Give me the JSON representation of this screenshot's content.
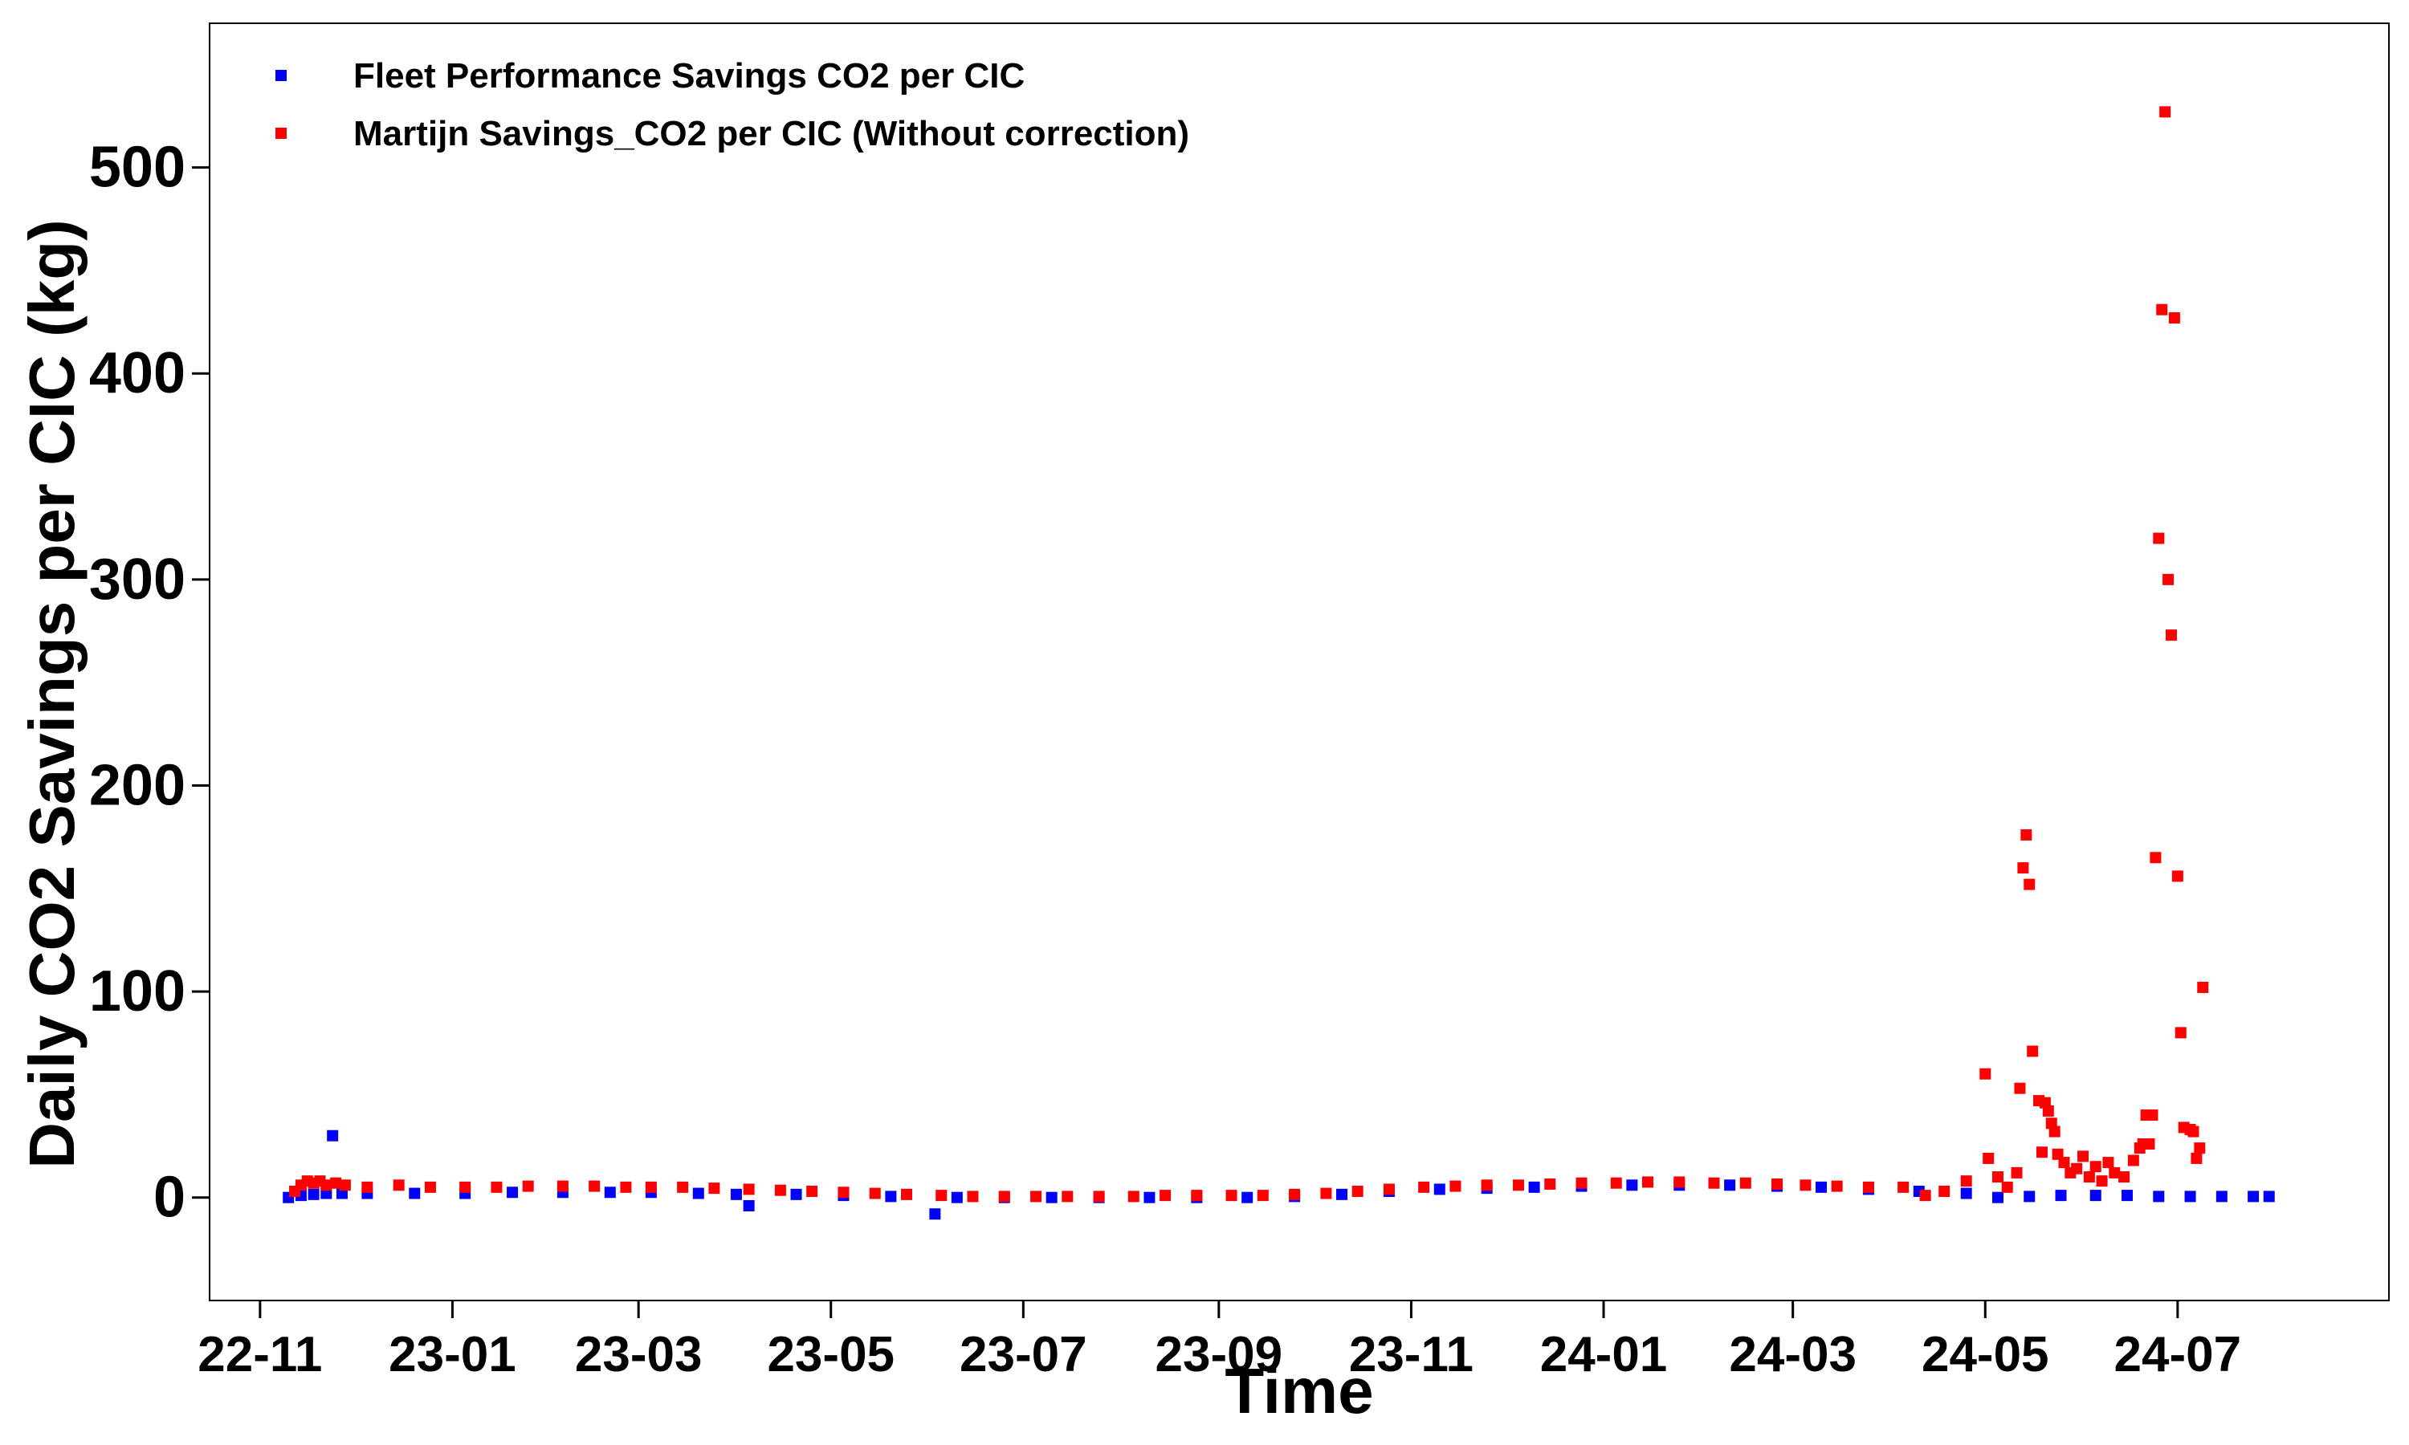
{
  "chart_data": {
    "type": "scatter",
    "title": "",
    "xlabel": "Time",
    "ylabel": "Daily CO2 Savings per CIC (kg)",
    "xlim": [
      "2022-10-16",
      "2024-09-06"
    ],
    "ylim": [
      -50,
      570
    ],
    "x_ticks": [
      "22-11",
      "23-01",
      "23-03",
      "23-05",
      "23-07",
      "23-09",
      "23-11",
      "24-01",
      "24-03",
      "24-05",
      "24-07"
    ],
    "y_ticks": [
      0,
      100,
      200,
      300,
      400,
      500
    ],
    "grid": false,
    "legend_position": "top-left",
    "series": [
      {
        "name": "Fleet Performance Savings CO2 per CIC",
        "color": "#0000ff",
        "marker": "square",
        "points": [
          [
            "2022-11-10",
            0
          ],
          [
            "2022-11-14",
            1
          ],
          [
            "2022-11-18",
            1.5
          ],
          [
            "2022-11-22",
            2
          ],
          [
            "2022-11-24",
            30
          ],
          [
            "2022-11-27",
            2
          ],
          [
            "2022-12-05",
            2
          ],
          [
            "2022-12-20",
            2
          ],
          [
            "2023-01-05",
            2
          ],
          [
            "2023-01-20",
            2.5
          ],
          [
            "2023-02-05",
            2.5
          ],
          [
            "2023-02-20",
            2.5
          ],
          [
            "2023-03-05",
            2.5
          ],
          [
            "2023-03-20",
            2
          ],
          [
            "2023-04-01",
            1.5
          ],
          [
            "2023-04-05",
            -4
          ],
          [
            "2023-04-20",
            1.5
          ],
          [
            "2023-05-05",
            1
          ],
          [
            "2023-05-20",
            0.5
          ],
          [
            "2023-06-03",
            -8
          ],
          [
            "2023-06-10",
            0
          ],
          [
            "2023-06-25",
            0
          ],
          [
            "2023-07-10",
            0
          ],
          [
            "2023-07-25",
            0
          ],
          [
            "2023-08-10",
            0
          ],
          [
            "2023-08-25",
            0
          ],
          [
            "2023-09-10",
            0
          ],
          [
            "2023-09-25",
            0.5
          ],
          [
            "2023-10-10",
            1.5
          ],
          [
            "2023-10-25",
            3
          ],
          [
            "2023-11-10",
            4
          ],
          [
            "2023-11-25",
            4.5
          ],
          [
            "2023-12-10",
            5
          ],
          [
            "2023-12-25",
            5.5
          ],
          [
            "2024-01-10",
            6
          ],
          [
            "2024-01-25",
            6
          ],
          [
            "2024-02-10",
            6
          ],
          [
            "2024-02-25",
            5.5
          ],
          [
            "2024-03-10",
            5
          ],
          [
            "2024-03-25",
            4
          ],
          [
            "2024-04-10",
            3
          ],
          [
            "2024-04-25",
            2
          ],
          [
            "2024-05-05",
            0
          ],
          [
            "2024-05-15",
            0.5
          ],
          [
            "2024-05-25",
            1
          ],
          [
            "2024-06-05",
            1
          ],
          [
            "2024-06-15",
            1
          ],
          [
            "2024-06-25",
            0.5
          ],
          [
            "2024-07-05",
            0.5
          ],
          [
            "2024-07-15",
            0.5
          ],
          [
            "2024-07-25",
            0.5
          ],
          [
            "2024-07-30",
            0.5
          ]
        ]
      },
      {
        "name": "Martijn Savings_CO2 per CIC (Without correction)",
        "color": "#ff0000",
        "marker": "square",
        "points": [
          [
            "2022-11-12",
            3
          ],
          [
            "2022-11-14",
            6
          ],
          [
            "2022-11-16",
            8
          ],
          [
            "2022-11-18",
            7
          ],
          [
            "2022-11-20",
            8
          ],
          [
            "2022-11-22",
            6
          ],
          [
            "2022-11-25",
            7
          ],
          [
            "2022-11-28",
            6
          ],
          [
            "2022-12-05",
            5
          ],
          [
            "2022-12-15",
            6
          ],
          [
            "2022-12-25",
            5
          ],
          [
            "2023-01-05",
            5
          ],
          [
            "2023-01-15",
            5
          ],
          [
            "2023-01-25",
            5.5
          ],
          [
            "2023-02-05",
            5.5
          ],
          [
            "2023-02-15",
            5.5
          ],
          [
            "2023-02-25",
            5
          ],
          [
            "2023-03-05",
            5
          ],
          [
            "2023-03-15",
            5
          ],
          [
            "2023-03-25",
            4.5
          ],
          [
            "2023-04-05",
            4
          ],
          [
            "2023-04-15",
            3.5
          ],
          [
            "2023-04-25",
            3
          ],
          [
            "2023-05-05",
            2.5
          ],
          [
            "2023-05-15",
            2
          ],
          [
            "2023-05-25",
            1.5
          ],
          [
            "2023-06-05",
            1
          ],
          [
            "2023-06-15",
            0.5
          ],
          [
            "2023-06-25",
            0.5
          ],
          [
            "2023-07-05",
            0.5
          ],
          [
            "2023-07-15",
            0.5
          ],
          [
            "2023-07-25",
            0.5
          ],
          [
            "2023-08-05",
            0.5
          ],
          [
            "2023-08-15",
            1
          ],
          [
            "2023-08-25",
            1
          ],
          [
            "2023-09-05",
            1
          ],
          [
            "2023-09-15",
            1
          ],
          [
            "2023-09-25",
            1.5
          ],
          [
            "2023-10-05",
            2
          ],
          [
            "2023-10-15",
            3
          ],
          [
            "2023-10-25",
            4
          ],
          [
            "2023-11-05",
            5
          ],
          [
            "2023-11-15",
            5.5
          ],
          [
            "2023-11-25",
            6
          ],
          [
            "2023-12-05",
            6
          ],
          [
            "2023-12-15",
            6.5
          ],
          [
            "2023-12-25",
            7
          ],
          [
            "2024-01-05",
            7
          ],
          [
            "2024-01-15",
            7.5
          ],
          [
            "2024-01-25",
            7.5
          ],
          [
            "2024-02-05",
            7
          ],
          [
            "2024-02-15",
            7
          ],
          [
            "2024-02-25",
            6.5
          ],
          [
            "2024-03-05",
            6
          ],
          [
            "2024-03-15",
            5.5
          ],
          [
            "2024-03-25",
            5
          ],
          [
            "2024-04-05",
            5
          ],
          [
            "2024-04-12",
            1
          ],
          [
            "2024-04-18",
            3
          ],
          [
            "2024-04-25",
            8
          ],
          [
            "2024-05-01",
            60
          ],
          [
            "2024-05-02",
            19
          ],
          [
            "2024-05-05",
            10
          ],
          [
            "2024-05-08",
            5
          ],
          [
            "2024-05-11",
            12
          ],
          [
            "2024-05-12",
            53
          ],
          [
            "2024-05-13",
            160
          ],
          [
            "2024-05-14",
            176
          ],
          [
            "2024-05-15",
            152
          ],
          [
            "2024-05-16",
            71
          ],
          [
            "2024-05-18",
            47
          ],
          [
            "2024-05-19",
            22
          ],
          [
            "2024-05-20",
            46
          ],
          [
            "2024-05-21",
            42
          ],
          [
            "2024-05-22",
            36
          ],
          [
            "2024-05-23",
            32
          ],
          [
            "2024-05-24",
            21
          ],
          [
            "2024-05-26",
            17
          ],
          [
            "2024-05-28",
            12
          ],
          [
            "2024-05-30",
            14
          ],
          [
            "2024-06-01",
            20
          ],
          [
            "2024-06-03",
            10
          ],
          [
            "2024-06-05",
            15
          ],
          [
            "2024-06-07",
            8
          ],
          [
            "2024-06-09",
            17
          ],
          [
            "2024-06-11",
            12
          ],
          [
            "2024-06-14",
            10
          ],
          [
            "2024-06-17",
            18
          ],
          [
            "2024-06-19",
            24
          ],
          [
            "2024-06-20",
            26
          ],
          [
            "2024-06-21",
            40
          ],
          [
            "2024-06-22",
            26
          ],
          [
            "2024-06-23",
            40
          ],
          [
            "2024-06-24",
            165
          ],
          [
            "2024-06-25",
            320
          ],
          [
            "2024-06-26",
            431
          ],
          [
            "2024-06-27",
            527
          ],
          [
            "2024-06-28",
            300
          ],
          [
            "2024-06-29",
            273
          ],
          [
            "2024-06-30",
            427
          ],
          [
            "2024-07-01",
            156
          ],
          [
            "2024-07-02",
            80
          ],
          [
            "2024-07-03",
            34
          ],
          [
            "2024-07-05",
            33
          ],
          [
            "2024-07-06",
            32
          ],
          [
            "2024-07-07",
            19
          ],
          [
            "2024-07-08",
            24
          ],
          [
            "2024-07-09",
            102
          ]
        ]
      }
    ]
  }
}
